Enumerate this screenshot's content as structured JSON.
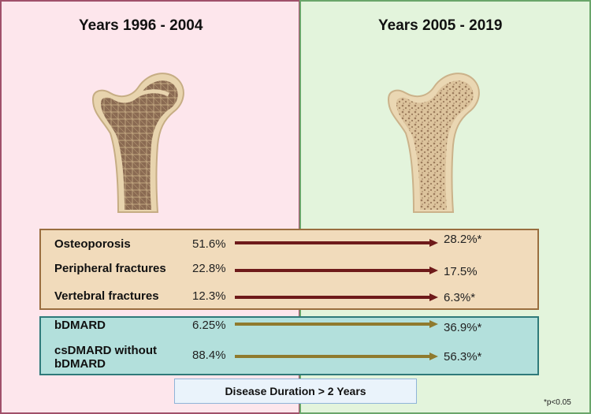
{
  "left_era": {
    "title": "Years 1996 - 2004"
  },
  "right_era": {
    "title": "Years 2005 - 2019"
  },
  "outcomes": [
    {
      "label": "Osteoporosis",
      "before": "51.6%",
      "after": "28.2%*"
    },
    {
      "label": "Peripheral fractures",
      "before": "22.8%",
      "after": "17.5%"
    },
    {
      "label": "Vertebral fractures",
      "before": "12.3%",
      "after": "6.3%*"
    }
  ],
  "treatments": [
    {
      "label": "bDMARD",
      "before": "6.25%",
      "after": "36.9%*"
    },
    {
      "label": "csDMARD without bDMARD",
      "before": "88.4%",
      "after": "56.3%*"
    }
  ],
  "footer": {
    "label": "Disease Duration > 2 Years"
  },
  "footnote": "*p<0.05",
  "colors": {
    "left_panel": "#fde6ec",
    "right_panel": "#e3f4dc",
    "outcome_box": "#f1dbbb",
    "treatment_box": "#b3e0dc",
    "outcome_arrow": "#6e1a1a",
    "treatment_arrow": "#8f7a2e"
  }
}
